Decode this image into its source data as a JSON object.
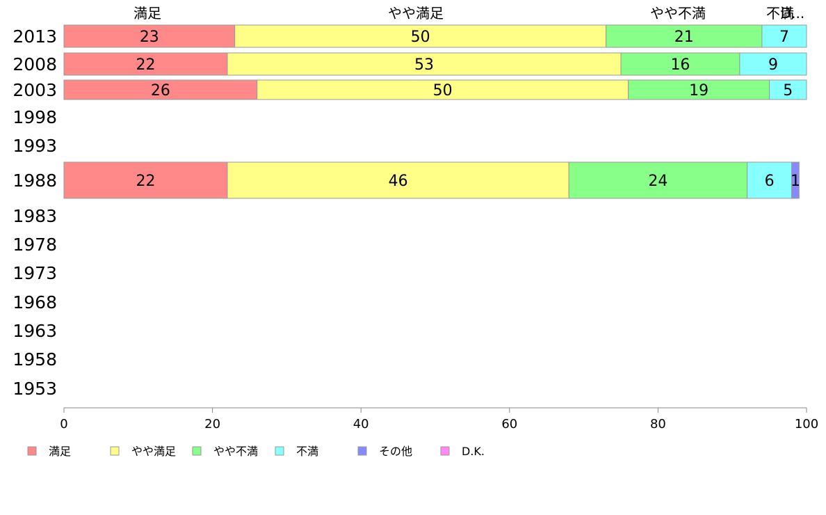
{
  "chart_data": {
    "type": "bar",
    "orientation": "horizontal",
    "stacked": true,
    "title": "",
    "xlabel": "",
    "ylabel": "",
    "xlim": [
      0,
      100
    ],
    "x_ticks": [
      0,
      20,
      40,
      60,
      80,
      100
    ],
    "categories": [
      "2013",
      "2008",
      "2003",
      "1998",
      "1993",
      "1988",
      "1983",
      "1978",
      "1973",
      "1968",
      "1963",
      "1958",
      "1953"
    ],
    "top_labels": [
      "満足",
      "やや満足",
      "やや不満",
      "不満",
      "D..."
    ],
    "series": [
      {
        "name": "満足",
        "color": "#ff8888",
        "values": [
          23,
          22,
          26,
          null,
          null,
          22,
          null,
          null,
          null,
          null,
          null,
          null,
          null
        ],
        "labels": [
          "23",
          "22",
          "26",
          "",
          "",
          "22",
          "",
          "",
          "",
          "",
          "",
          "",
          ""
        ]
      },
      {
        "name": "やや満足",
        "color": "#ffff88",
        "values": [
          50,
          53,
          50,
          null,
          null,
          46,
          null,
          null,
          null,
          null,
          null,
          null,
          null
        ],
        "labels": [
          "50",
          "53",
          "50",
          "",
          "",
          "46",
          "",
          "",
          "",
          "",
          "",
          "",
          ""
        ]
      },
      {
        "name": "やや不満",
        "color": "#88ff88",
        "values": [
          21,
          16,
          19,
          null,
          null,
          24,
          null,
          null,
          null,
          null,
          null,
          null,
          null
        ],
        "labels": [
          "21",
          "16",
          "19",
          "",
          "",
          "24",
          "",
          "",
          "",
          "",
          "",
          "",
          ""
        ]
      },
      {
        "name": "不満",
        "color": "#88ffff",
        "values": [
          7,
          9,
          5,
          null,
          null,
          6,
          null,
          null,
          null,
          null,
          null,
          null,
          null
        ],
        "labels": [
          "7",
          "9",
          "5",
          "",
          "",
          "6",
          "",
          "",
          "",
          "",
          "",
          "",
          ""
        ]
      },
      {
        "name": "その他",
        "color": "#8888ff",
        "values": [
          0,
          0,
          0,
          null,
          null,
          1,
          null,
          null,
          null,
          null,
          null,
          null,
          null
        ],
        "labels": [
          "",
          "",
          "",
          "",
          "",
          "1",
          "",
          "",
          "",
          "",
          "",
          "",
          ""
        ]
      },
      {
        "name": "D.K.",
        "color": "#ff88ff",
        "values": [
          0,
          0,
          0,
          null,
          null,
          0,
          null,
          null,
          null,
          null,
          null,
          null,
          null
        ],
        "labels": [
          "",
          "",
          "",
          "",
          "",
          "",
          "",
          "",
          "",
          "",
          "",
          "",
          ""
        ]
      }
    ],
    "legend": {
      "position": "bottom",
      "items": [
        "満足",
        "やや満足",
        "やや不満",
        "不満",
        "その他",
        "D.K."
      ]
    },
    "grid": false
  }
}
